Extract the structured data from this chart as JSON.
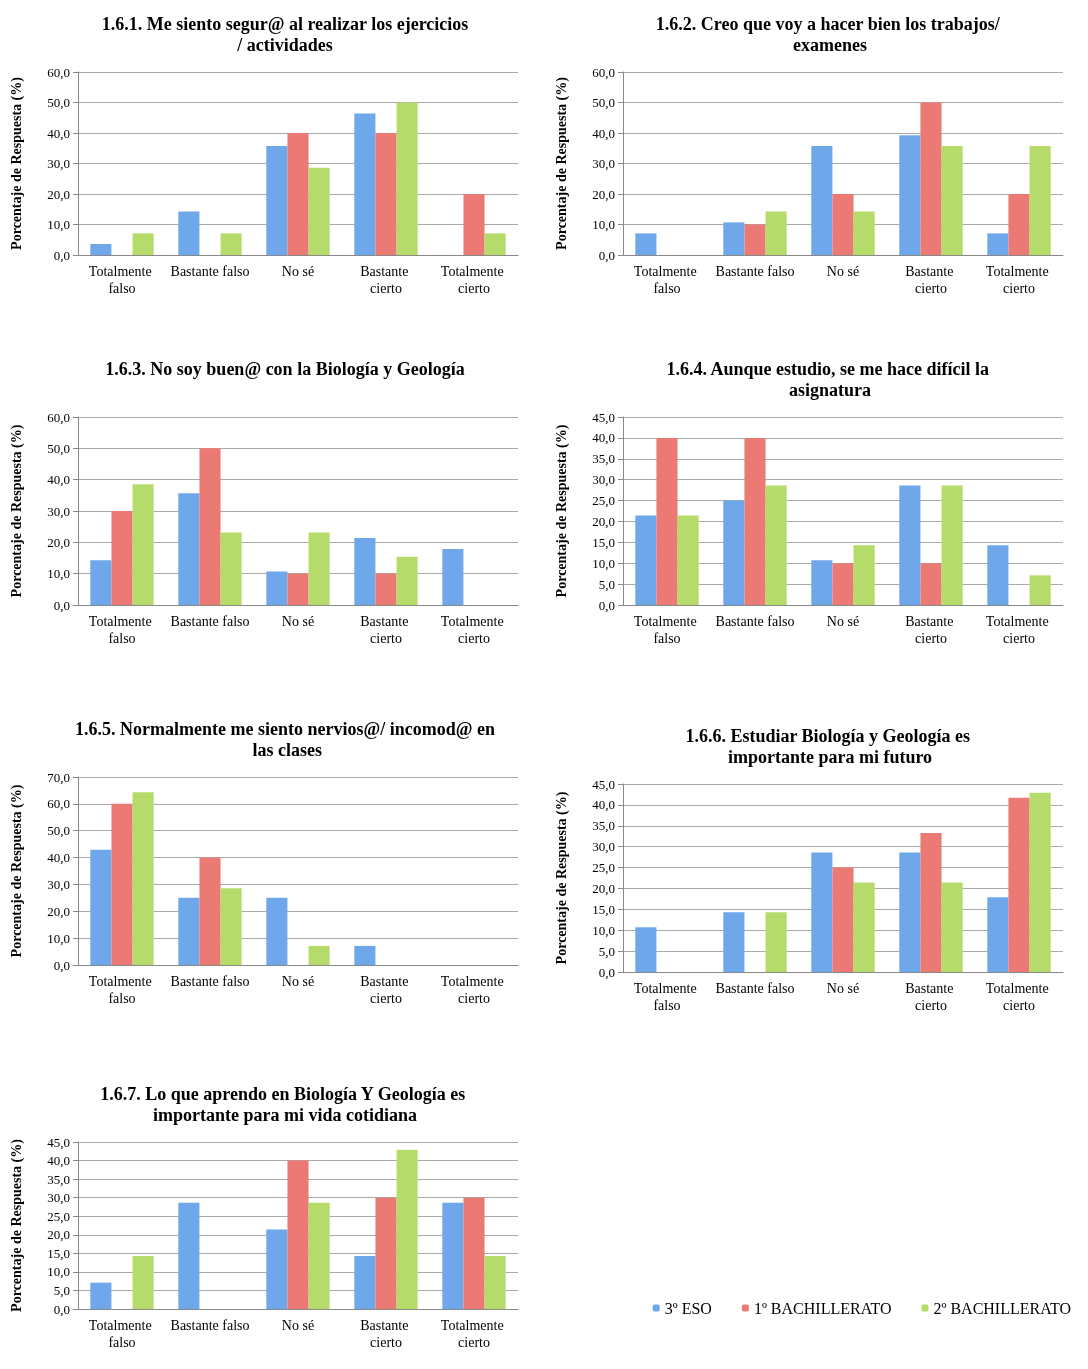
{
  "chart_data": [
    {
      "type": "bar",
      "title": "1.6.1. Me siento segur@ al realizar los ejercicios/ actividades",
      "ylabel": "Porcentaje de Respuesta (%)",
      "categories": [
        "Totalmente falso",
        "Bastante falso",
        "No sé",
        "Bastante cierto",
        "Totalmente cierto"
      ],
      "ylim": [
        0,
        60
      ],
      "yticks": [
        {
          "value": 0,
          "label": "0,0"
        },
        {
          "value": 10,
          "label": "10,0"
        },
        {
          "value": 20,
          "label": "20,0"
        },
        {
          "value": 30,
          "label": "30,0"
        },
        {
          "value": 40,
          "label": "40,0"
        },
        {
          "value": 50,
          "label": "50,0"
        },
        {
          "value": 60,
          "label": "60,0"
        }
      ],
      "grid": "y",
      "series": [
        {
          "color": "#6fa8ea",
          "values": [
            3.6,
            14.3,
            35.7,
            46.4,
            0
          ]
        },
        {
          "color": "#ec7a74",
          "values": [
            0,
            0,
            40,
            40,
            20
          ]
        },
        {
          "color": "#b5dc6b",
          "values": [
            7.1,
            7.1,
            28.6,
            50,
            7.1
          ]
        }
      ]
    },
    {
      "type": "bar",
      "title": "1.6.2. Creo que voy a hacer bien los trabajos/ examenes",
      "ylabel": "Porcentaje de Respuesta (%)",
      "categories": [
        "Totalmente falso",
        "Bastante falso",
        "No sé",
        "Bastante cierto",
        "Totalmente cierto"
      ],
      "ylim": [
        0,
        60
      ],
      "yticks": [
        {
          "value": 0,
          "label": "0,0"
        },
        {
          "value": 10,
          "label": "10,0"
        },
        {
          "value": 20,
          "label": "20,0"
        },
        {
          "value": 30,
          "label": "30,0"
        },
        {
          "value": 40,
          "label": "40,0"
        },
        {
          "value": 50,
          "label": "50,0"
        },
        {
          "value": 60,
          "label": "60,0"
        }
      ],
      "grid": "y",
      "series": [
        {
          "color": "#6fa8ea",
          "values": [
            7.1,
            10.7,
            35.7,
            39.3,
            7.1
          ]
        },
        {
          "color": "#ec7a74",
          "values": [
            0,
            10,
            20,
            50,
            20
          ]
        },
        {
          "color": "#b5dc6b",
          "values": [
            0,
            14.3,
            14.3,
            35.7,
            35.7
          ]
        }
      ]
    },
    {
      "type": "bar",
      "title": "1.6.3. No soy buen@ con la Biología y Geología",
      "ylabel": "Porcentaje de Respuesta (%)",
      "categories": [
        "Totalmente falso",
        "Bastante falso",
        "No sé",
        "Bastante cierto",
        "Totalmente cierto"
      ],
      "ylim": [
        0,
        60
      ],
      "yticks": [
        {
          "value": 0,
          "label": "0,0"
        },
        {
          "value": 10,
          "label": "10,0"
        },
        {
          "value": 20,
          "label": "20,0"
        },
        {
          "value": 30,
          "label": "30,0"
        },
        {
          "value": 40,
          "label": "40,0"
        },
        {
          "value": 50,
          "label": "50,0"
        },
        {
          "value": 60,
          "label": "60,0"
        }
      ],
      "grid": "y",
      "series": [
        {
          "color": "#6fa8ea",
          "values": [
            14.3,
            35.7,
            10.7,
            21.4,
            17.9
          ]
        },
        {
          "color": "#ec7a74",
          "values": [
            30,
            50,
            10,
            10,
            0
          ]
        },
        {
          "color": "#b5dc6b",
          "values": [
            38.5,
            23.1,
            23.1,
            15.4,
            0
          ]
        }
      ]
    },
    {
      "type": "bar",
      "title": "1.6.4. Aunque estudio, se me hace difícil la asignatura",
      "ylabel": "Porcentaje de Respuesta (%)",
      "categories": [
        "Totalmente falso",
        "Bastante falso",
        "No sé",
        "Bastante cierto",
        "Totalmente cierto"
      ],
      "ylim": [
        0,
        45
      ],
      "yticks": [
        {
          "value": 0,
          "label": "0,0"
        },
        {
          "value": 5,
          "label": "5,0"
        },
        {
          "value": 10,
          "label": "10,0"
        },
        {
          "value": 15,
          "label": "15,0"
        },
        {
          "value": 20,
          "label": "20,0"
        },
        {
          "value": 25,
          "label": "25,0"
        },
        {
          "value": 30,
          "label": "30,0"
        },
        {
          "value": 35,
          "label": "35,0"
        },
        {
          "value": 40,
          "label": "40,0"
        },
        {
          "value": 45,
          "label": "45,0"
        }
      ],
      "grid": "y",
      "series": [
        {
          "color": "#6fa8ea",
          "values": [
            21.4,
            25,
            10.7,
            28.6,
            14.3
          ]
        },
        {
          "color": "#ec7a74",
          "values": [
            40,
            40,
            10,
            10,
            0
          ]
        },
        {
          "color": "#b5dc6b",
          "values": [
            21.4,
            28.6,
            14.3,
            28.6,
            7.1
          ]
        }
      ]
    },
    {
      "type": "bar",
      "title": "1.6.5. Normalmente me siento nervios@/ incomod@ en las clases",
      "ylabel": "Porcentaje de Respuesta (%)",
      "categories": [
        "Totalmente falso",
        "Bastante falso",
        "No sé",
        "Bastante cierto",
        "Totalmente cierto"
      ],
      "ylim": [
        0,
        70
      ],
      "yticks": [
        {
          "value": 0,
          "label": "0,0"
        },
        {
          "value": 10,
          "label": "10,0"
        },
        {
          "value": 20,
          "label": "20,0"
        },
        {
          "value": 30,
          "label": "30,0"
        },
        {
          "value": 40,
          "label": "40,0"
        },
        {
          "value": 50,
          "label": "50,0"
        },
        {
          "value": 60,
          "label": "60,0"
        },
        {
          "value": 70,
          "label": "70,0"
        }
      ],
      "grid": "y",
      "series": [
        {
          "color": "#6fa8ea",
          "values": [
            42.9,
            25,
            25,
            7.1,
            0
          ]
        },
        {
          "color": "#ec7a74",
          "values": [
            60,
            40,
            0,
            0,
            0
          ]
        },
        {
          "color": "#b5dc6b",
          "values": [
            64.3,
            28.6,
            7.1,
            0,
            0
          ]
        }
      ]
    },
    {
      "type": "bar",
      "title": "1.6.6. Estudiar Biología y Geología es importante para mi futuro",
      "ylabel": "Porcentaje de Respuesta (%)",
      "categories": [
        "Totalmente falso",
        "Bastante falso",
        "No sé",
        "Bastante cierto",
        "Totalmente cierto"
      ],
      "ylim": [
        0,
        45
      ],
      "yticks": [
        {
          "value": 0,
          "label": "0,0"
        },
        {
          "value": 5,
          "label": "5,0"
        },
        {
          "value": 10,
          "label": "10,0"
        },
        {
          "value": 15,
          "label": "15,0"
        },
        {
          "value": 20,
          "label": "20,0"
        },
        {
          "value": 25,
          "label": "25,0"
        },
        {
          "value": 30,
          "label": "30,0"
        },
        {
          "value": 35,
          "label": "35,0"
        },
        {
          "value": 40,
          "label": "40,0"
        },
        {
          "value": 45,
          "label": "45,0"
        }
      ],
      "grid": "y",
      "series": [
        {
          "color": "#6fa8ea",
          "values": [
            10.7,
            14.3,
            28.6,
            28.6,
            17.9
          ]
        },
        {
          "color": "#ec7a74",
          "values": [
            0,
            0,
            25,
            33.3,
            41.7
          ]
        },
        {
          "color": "#b5dc6b",
          "values": [
            0,
            14.3,
            21.4,
            21.4,
            42.9
          ]
        }
      ]
    },
    {
      "type": "bar",
      "title": "1.6.7. Lo que aprendo en Biología Y Geología es importante para mi vida cotidiana",
      "ylabel": "Porcentaje de Respuesta (%)",
      "categories": [
        "Totalmente falso",
        "Bastante falso",
        "No sé",
        "Bastante cierto",
        "Totalmente cierto"
      ],
      "ylim": [
        0,
        45
      ],
      "yticks": [
        {
          "value": 0,
          "label": "0,0"
        },
        {
          "value": 5,
          "label": "5,0"
        },
        {
          "value": 10,
          "label": "10,0"
        },
        {
          "value": 15,
          "label": "15,0"
        },
        {
          "value": 20,
          "label": "20,0"
        },
        {
          "value": 25,
          "label": "25,0"
        },
        {
          "value": 30,
          "label": "30,0"
        },
        {
          "value": 35,
          "label": "35,0"
        },
        {
          "value": 40,
          "label": "40,0"
        },
        {
          "value": 45,
          "label": "45,0"
        }
      ],
      "grid": "y",
      "legend": "right",
      "series": [
        {
          "name": "3º ESO",
          "color": "#6fa8ea",
          "values": [
            7.1,
            28.6,
            21.4,
            14.3,
            28.6
          ]
        },
        {
          "name": "1º BACHILLERATO",
          "color": "#ec7a74",
          "values": [
            0,
            0,
            40,
            30,
            30
          ]
        },
        {
          "name": "2º BACHILLERATO",
          "color": "#b5dc6b",
          "values": [
            14.3,
            0,
            28.6,
            42.9,
            14.3
          ]
        }
      ]
    }
  ]
}
